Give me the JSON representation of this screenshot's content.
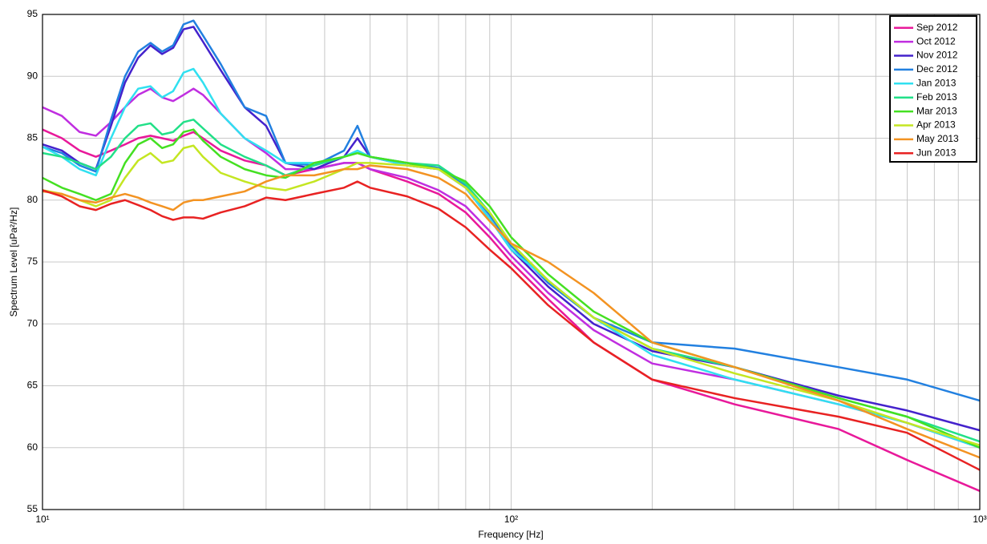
{
  "chart_data": {
    "type": "line",
    "xlabel": "Frequency [Hz]",
    "ylabel": "Spectrum Level [uPa²/Hz]",
    "xscale": "log",
    "xlim": [
      10,
      1000
    ],
    "xticks": [
      {
        "value": 10,
        "label": "10¹"
      },
      {
        "value": 100,
        "label": "10²"
      },
      {
        "value": 1000,
        "label": "10³"
      }
    ],
    "xminor_ticks": [
      20,
      30,
      40,
      50,
      60,
      70,
      80,
      90,
      200,
      300,
      400,
      500,
      600,
      700,
      800,
      900
    ],
    "ylim": [
      55,
      95
    ],
    "yticks": [
      55,
      60,
      65,
      70,
      75,
      80,
      85,
      90,
      95
    ],
    "grid": true,
    "legend_position": "northeast",
    "x": [
      10,
      11,
      12,
      13,
      14,
      15,
      16,
      17,
      18,
      19,
      20,
      21,
      22,
      24,
      27,
      30,
      33,
      38,
      44,
      47,
      50,
      60,
      70,
      80,
      90,
      100,
      120,
      150,
      200,
      300,
      500,
      700,
      1000
    ],
    "series": [
      {
        "name": "Sep 2012",
        "color": "#e8199a",
        "values": [
          85.7,
          85,
          84,
          83.5,
          84,
          84.5,
          85,
          85.2,
          85,
          84.8,
          85.2,
          85.5,
          85,
          84,
          83.2,
          82.8,
          82,
          82.5,
          83,
          83,
          82.5,
          81.5,
          80.5,
          79,
          77,
          75,
          72,
          68.5,
          65.5,
          63.5,
          61.5,
          59,
          56.5
        ]
      },
      {
        "name": "Oct 2012",
        "color": "#c02ee0",
        "values": [
          87.5,
          86.8,
          85.5,
          85.2,
          86.3,
          87.5,
          88.5,
          89,
          88.3,
          88,
          88.5,
          89,
          88.5,
          87,
          85,
          83.8,
          82.5,
          82.5,
          83,
          83,
          82.5,
          81.8,
          80.8,
          79.5,
          77.5,
          75.5,
          72.5,
          69.5,
          66.8,
          65.5,
          63.5,
          62,
          60
        ]
      },
      {
        "name": "Nov 2012",
        "color": "#4422cc",
        "values": [
          84.5,
          84,
          83,
          82.5,
          86,
          89.5,
          91.5,
          92.5,
          91.8,
          92.3,
          93.8,
          94,
          92.8,
          90.5,
          87.5,
          86,
          83,
          82.5,
          83.5,
          85,
          83.5,
          82.8,
          82.5,
          81,
          78.5,
          76,
          73,
          70,
          67.8,
          66.5,
          64.2,
          63,
          61.4
        ]
      },
      {
        "name": "Dec 2012",
        "color": "#2280e0",
        "values": [
          84.3,
          83.8,
          82.8,
          82.3,
          86.5,
          90,
          92,
          92.7,
          92,
          92.5,
          94.2,
          94.5,
          93.3,
          91,
          87.5,
          86.8,
          83,
          82.8,
          84,
          86,
          83.5,
          83,
          82.6,
          81.2,
          78.8,
          76.3,
          73.3,
          70.5,
          68.5,
          68,
          66.5,
          65.5,
          63.8
        ]
      },
      {
        "name": "Jan 2013",
        "color": "#30e0f0",
        "values": [
          84.3,
          83.5,
          82.5,
          82,
          85,
          87.5,
          89,
          89.2,
          88.3,
          88.8,
          90.3,
          90.6,
          89.5,
          87,
          85,
          84,
          83,
          83,
          83.5,
          84,
          83.5,
          82.8,
          82.5,
          81,
          78.5,
          76,
          73.5,
          70.5,
          67.5,
          65.5,
          63.5,
          62,
          60
        ]
      },
      {
        "name": "Feb 2013",
        "color": "#22e088",
        "values": [
          83.8,
          83.5,
          83,
          82.5,
          83.5,
          85,
          86,
          86.2,
          85.3,
          85.5,
          86.3,
          86.5,
          85.8,
          84.5,
          83.5,
          82.8,
          82,
          82.8,
          83.5,
          83.8,
          83.5,
          83,
          82.8,
          81.3,
          79,
          76.5,
          73.5,
          70.5,
          68,
          66.5,
          64,
          62.5,
          60.5
        ]
      },
      {
        "name": "Mar 2013",
        "color": "#44e022",
        "values": [
          81.8,
          81,
          80.5,
          80,
          80.5,
          83,
          84.5,
          85,
          84.2,
          84.5,
          85.5,
          85.7,
          84.8,
          83.5,
          82.5,
          82,
          81.8,
          83,
          83.5,
          83.8,
          83.5,
          83,
          82.5,
          81.5,
          79.5,
          77,
          74,
          71,
          68.5,
          66.5,
          64,
          62.5,
          60
        ]
      },
      {
        "name": "Apr 2013",
        "color": "#c4e622",
        "values": [
          80.8,
          80.5,
          80,
          79.5,
          80,
          81.8,
          83.2,
          83.8,
          83,
          83.2,
          84.2,
          84.4,
          83.5,
          82.2,
          81.5,
          81,
          80.8,
          81.5,
          82.5,
          83,
          83,
          82.8,
          82.5,
          81,
          79,
          76.5,
          73.5,
          70.5,
          68,
          66,
          63.8,
          62,
          60.2
        ]
      },
      {
        "name": "May 2013",
        "color": "#f39322",
        "values": [
          80.7,
          80.5,
          80,
          79.8,
          80.2,
          80.5,
          80.2,
          79.8,
          79.5,
          79.2,
          79.8,
          80,
          80,
          80.3,
          80.7,
          81.5,
          82,
          82,
          82.5,
          82.5,
          82.8,
          82.5,
          81.8,
          80.5,
          78.3,
          76.5,
          75,
          72.5,
          68.5,
          66.5,
          63.8,
          61.5,
          59.2
        ]
      },
      {
        "name": "Jun 2013",
        "color": "#e82222",
        "values": [
          80.8,
          80.3,
          79.5,
          79.2,
          79.7,
          80,
          79.6,
          79.2,
          78.7,
          78.4,
          78.6,
          78.6,
          78.5,
          79,
          79.5,
          80.2,
          80,
          80.5,
          81,
          81.5,
          81,
          80.3,
          79.3,
          77.8,
          76,
          74.5,
          71.5,
          68.5,
          65.5,
          64,
          62.5,
          61.2,
          58.2
        ]
      }
    ]
  }
}
